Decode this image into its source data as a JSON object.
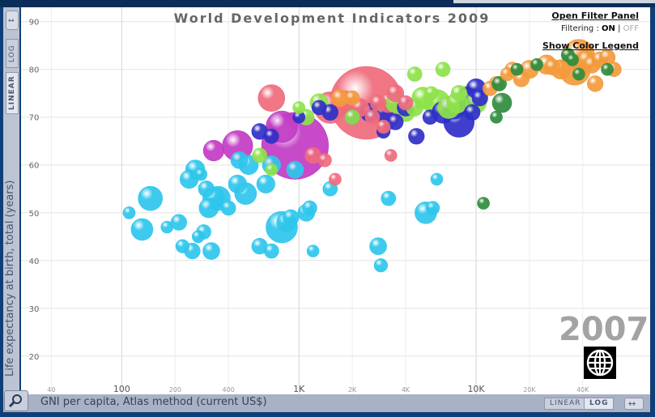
{
  "title": "World Development Indicators 2009",
  "controls": {
    "open_filter_panel": "Open Filter Panel",
    "filtering_label": "Filtering :",
    "filter_on": "ON",
    "filter_sep": "|",
    "filter_off": "OFF",
    "show_color_legend": "Show Color Legend",
    "y_log": "LOG",
    "y_linear": "LINEAR",
    "x_linear": "LINEAR",
    "x_log": "LOG"
  },
  "year": "2007",
  "icons": {
    "magnifier": "magnifier-icon",
    "y_scroll": "vertical-arrows-icon",
    "x_scroll": "horizontal-arrows-icon",
    "logo": "world-bank-globe-icon"
  },
  "chart_data": {
    "type": "scatter",
    "title": "World Development Indicators 2009",
    "xlabel": "GNI per capita, Atlas method (current US$)",
    "ylabel": "Life expectancy at birth, total (years)",
    "xscale": "log",
    "xlim": [
      27,
      96000
    ],
    "ylim": [
      12,
      93
    ],
    "grid": true,
    "x_ticks": [
      {
        "value": 40,
        "label": "40",
        "major": false
      },
      {
        "value": 100,
        "label": "100",
        "major": true
      },
      {
        "value": 200,
        "label": "200",
        "major": false
      },
      {
        "value": 400,
        "label": "400",
        "major": false
      },
      {
        "value": 1000,
        "label": "1K",
        "major": true
      },
      {
        "value": 2000,
        "label": "2K",
        "major": false
      },
      {
        "value": 4000,
        "label": "4K",
        "major": false
      },
      {
        "value": 10000,
        "label": "10K",
        "major": true
      },
      {
        "value": 20000,
        "label": "20K",
        "major": false
      },
      {
        "value": 40000,
        "label": "40K",
        "major": false
      }
    ],
    "y_ticks": [
      {
        "value": 20,
        "label": "20"
      },
      {
        "value": 30,
        "label": "30"
      },
      {
        "value": 40,
        "label": "40"
      },
      {
        "value": 50,
        "label": "50"
      },
      {
        "value": 60,
        "label": "60"
      },
      {
        "value": 70,
        "label": "70"
      },
      {
        "value": 80,
        "label": "80"
      },
      {
        "value": 90,
        "label": "90"
      }
    ],
    "series": [
      {
        "color": "#2ec6ec",
        "points": [
          [
            110,
            50,
            1
          ],
          [
            130,
            46.5,
            1.8
          ],
          [
            145,
            53,
            2
          ],
          [
            180,
            47,
            1
          ],
          [
            210,
            48,
            1.3
          ],
          [
            240,
            57,
            1.5
          ],
          [
            260,
            59,
            1.6
          ],
          [
            280,
            58,
            1
          ],
          [
            300,
            55,
            1.3
          ],
          [
            310,
            51,
            1.6
          ],
          [
            330,
            53,
            1.8
          ],
          [
            350,
            53,
            2
          ],
          [
            270,
            45,
            1
          ],
          [
            290,
            46,
            1.2
          ],
          [
            320,
            42,
            1.4
          ],
          [
            400,
            51,
            1.2
          ],
          [
            450,
            56,
            1.5
          ],
          [
            460,
            61,
            1.4
          ],
          [
            500,
            54,
            1.8
          ],
          [
            520,
            60,
            1.6
          ],
          [
            600,
            43,
            1.3
          ],
          [
            650,
            56,
            1.5
          ],
          [
            700,
            60,
            1.5
          ],
          [
            800,
            47,
            2.6
          ],
          [
            850,
            48,
            1.6
          ],
          [
            900,
            49,
            1.3
          ],
          [
            950,
            59,
            1.4
          ],
          [
            1100,
            50,
            1.4
          ],
          [
            1150,
            51,
            1.2
          ],
          [
            1500,
            55,
            1.2
          ],
          [
            2900,
            39,
            1.1
          ],
          [
            2800,
            43,
            1.4
          ],
          [
            3200,
            53,
            1.2
          ],
          [
            5200,
            50,
            1.8
          ],
          [
            5700,
            51,
            1.1
          ],
          [
            6000,
            57,
            1
          ],
          [
            700,
            42,
            1.2
          ],
          [
            1200,
            42,
            1
          ],
          [
            220,
            43,
            1.1
          ],
          [
            250,
            42,
            1.3
          ]
        ]
      },
      {
        "color": "#c23bc4",
        "points": [
          [
            950,
            64,
            5.5
          ],
          [
            800,
            68,
            2.6
          ],
          [
            450,
            64,
            2.5
          ],
          [
            330,
            63,
            1.7
          ]
        ]
      },
      {
        "color": "#2f2fc8",
        "points": [
          [
            600,
            67,
            1.3
          ],
          [
            700,
            66,
            1.2
          ],
          [
            1000,
            70,
            1
          ],
          [
            1300,
            72,
            1.2
          ],
          [
            1500,
            71,
            1.3
          ],
          [
            2000,
            70,
            1.2
          ],
          [
            2500,
            71,
            1.5
          ],
          [
            3000,
            71,
            1.6
          ],
          [
            3500,
            69,
            1.3
          ],
          [
            4000,
            72,
            1.4
          ],
          [
            4600,
            66,
            1.3
          ],
          [
            5500,
            70,
            1.2
          ],
          [
            6500,
            71,
            1.8
          ],
          [
            7500,
            72,
            1.9
          ],
          [
            8000,
            69,
            2.5
          ],
          [
            9000,
            74,
            1.8
          ],
          [
            9500,
            71,
            1.3
          ],
          [
            10000,
            76,
            1.6
          ],
          [
            10500,
            74,
            1.3
          ],
          [
            3000,
            67,
            1.1
          ]
        ]
      },
      {
        "color": "#ef6b7c",
        "points": [
          [
            700,
            74,
            2.2
          ],
          [
            2400,
            73,
            6
          ],
          [
            1500,
            72,
            2.6
          ],
          [
            1800,
            73,
            2
          ],
          [
            2200,
            72,
            1.5
          ],
          [
            2800,
            73,
            1.3
          ],
          [
            3200,
            73,
            1.6
          ],
          [
            3500,
            75,
            1.4
          ],
          [
            3300,
            62,
            1
          ],
          [
            1200,
            62,
            1.3
          ],
          [
            1400,
            61,
            1.1
          ],
          [
            1600,
            57,
            1
          ],
          [
            3000,
            68,
            1.1
          ],
          [
            2600,
            70,
            1.2
          ],
          [
            4000,
            73,
            1.2
          ]
        ]
      },
      {
        "color": "#8ee24a",
        "points": [
          [
            1300,
            73,
            1.5
          ],
          [
            1100,
            70,
            1.3
          ],
          [
            3500,
            73,
            1.6
          ],
          [
            4000,
            71,
            1.5
          ],
          [
            4500,
            72,
            1.4
          ],
          [
            5000,
            74,
            1.8
          ],
          [
            6000,
            73,
            2.2
          ],
          [
            7000,
            72,
            1.8
          ],
          [
            7800,
            73,
            1.7
          ],
          [
            9000,
            74,
            2
          ],
          [
            10000,
            73,
            1.7
          ],
          [
            6500,
            80,
            1.2
          ],
          [
            4500,
            79,
            1.2
          ],
          [
            5600,
            75,
            1.1
          ],
          [
            8000,
            75,
            1.3
          ],
          [
            2000,
            70,
            1.2
          ],
          [
            700,
            59,
            1
          ],
          [
            600,
            62,
            1.2
          ],
          [
            1000,
            72,
            1
          ]
        ]
      },
      {
        "color": "#f49a3c",
        "points": [
          [
            36000,
            80,
            2.6
          ],
          [
            38000,
            83,
            2.6
          ],
          [
            30000,
            80,
            1.6
          ],
          [
            25000,
            81,
            1.6
          ],
          [
            27000,
            80.5,
            1.3
          ],
          [
            40000,
            81,
            1.6
          ],
          [
            42000,
            82,
            1.5
          ],
          [
            45000,
            81,
            1.4
          ],
          [
            50000,
            82,
            1.3
          ],
          [
            55000,
            82.5,
            1.3
          ],
          [
            60000,
            80,
            1.2
          ],
          [
            20000,
            80,
            1.5
          ],
          [
            18000,
            78,
            1.3
          ],
          [
            16000,
            80,
            1.2
          ],
          [
            13000,
            77,
            1.2
          ],
          [
            12000,
            76,
            1.2
          ],
          [
            15000,
            79,
            1.1
          ],
          [
            47000,
            77,
            1.3
          ],
          [
            1700,
            74,
            1.4
          ],
          [
            2000,
            74,
            1.2
          ]
        ]
      },
      {
        "color": "#2f8c3e",
        "points": [
          [
            14000,
            73,
            1.6
          ],
          [
            13000,
            70,
            1
          ],
          [
            11000,
            52,
            1
          ],
          [
            17000,
            80,
            1
          ],
          [
            22000,
            81,
            1
          ],
          [
            33000,
            83,
            1.1
          ],
          [
            35000,
            82,
            1
          ],
          [
            38000,
            79,
            1
          ],
          [
            55000,
            80,
            1
          ],
          [
            13500,
            77,
            1.2
          ]
        ]
      }
    ]
  }
}
